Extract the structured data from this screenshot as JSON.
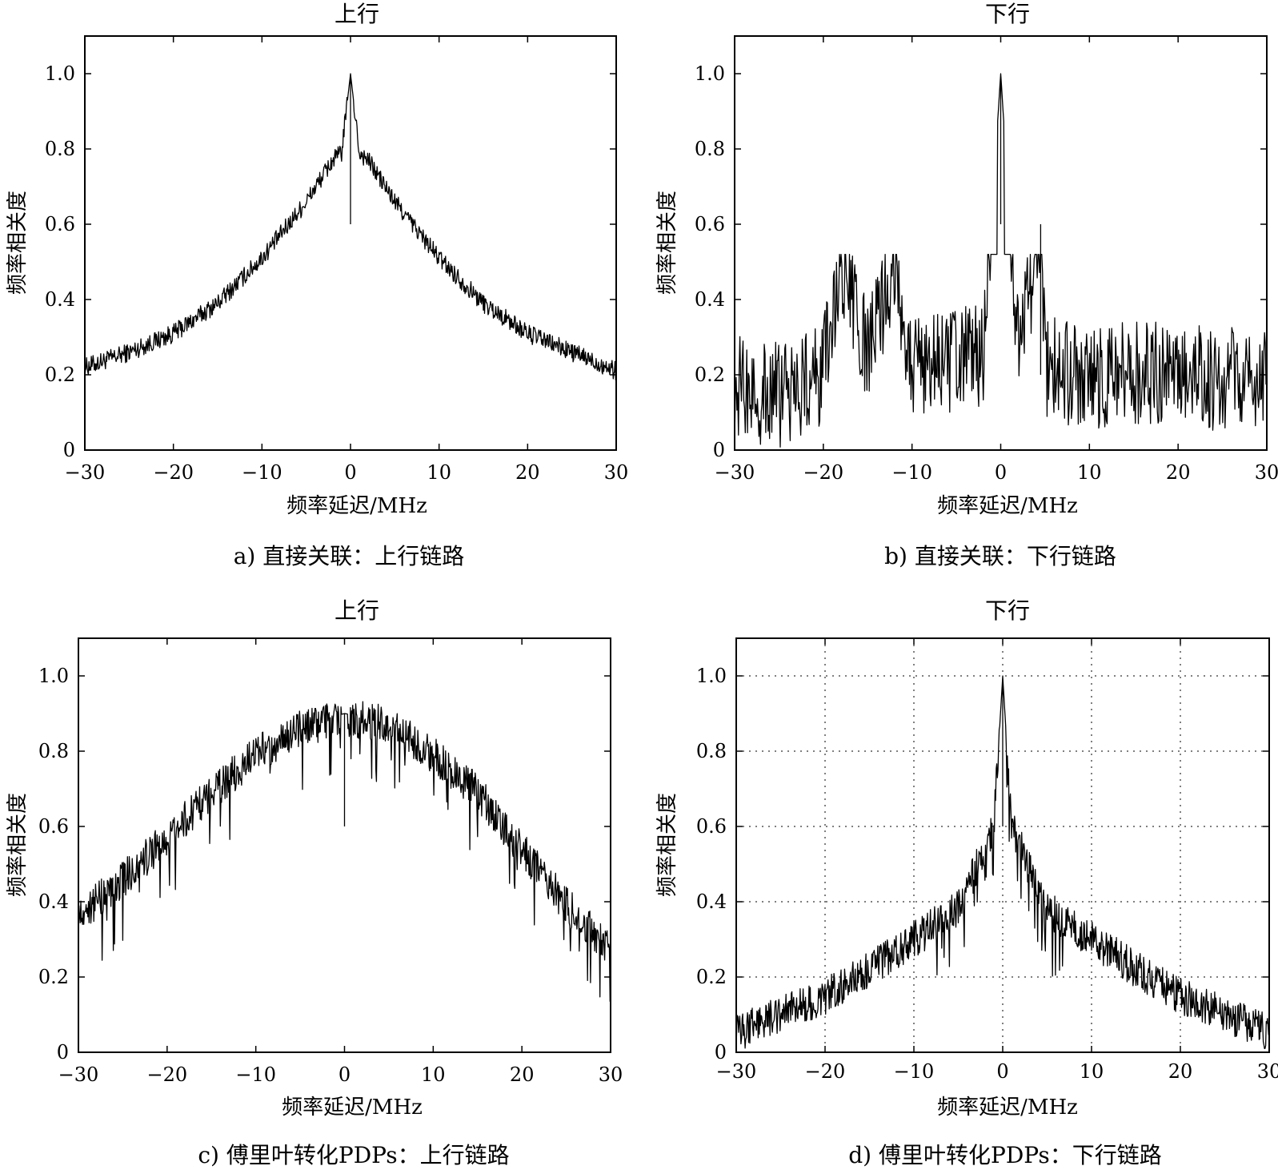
{
  "chart_data": [
    {
      "type": "line",
      "title": "上行",
      "xlabel": "频率延迟/MHz",
      "ylabel": "频率相关度",
      "caption": "a) 直接关联：上行链路",
      "xlim": [
        -30,
        30
      ],
      "ylim": [
        0,
        1.1
      ],
      "xticks": [
        "−30",
        "−20",
        "−10",
        "0",
        "10",
        "20",
        "30"
      ],
      "yticks": [
        "0",
        "0.2",
        "0.4",
        "0.6",
        "0.8",
        "1.0"
      ],
      "grid": false,
      "series": [
        {
          "x": [
            -30,
            -25,
            -20,
            -15,
            -10,
            -5,
            -2,
            -1,
            0,
            1,
            2,
            5,
            10,
            15,
            20,
            25,
            30
          ],
          "y": [
            0.22,
            0.26,
            0.31,
            0.39,
            0.51,
            0.66,
            0.77,
            0.79,
            1.0,
            0.79,
            0.77,
            0.66,
            0.51,
            0.39,
            0.31,
            0.26,
            0.21
          ]
        }
      ]
    },
    {
      "type": "line",
      "title": "下行",
      "xlabel": "频率延迟/MHz",
      "ylabel": "频率相关度",
      "caption": "b) 直接关联：下行链路",
      "xlim": [
        -30,
        30
      ],
      "ylim": [
        0,
        1.1
      ],
      "xticks": [
        "−30",
        "−20",
        "−10",
        "0",
        "10",
        "20",
        "30"
      ],
      "yticks": [
        "0",
        "0.2",
        "0.4",
        "0.6",
        "0.8",
        "1.0"
      ],
      "grid": false,
      "series": [
        {
          "x": [
            -30,
            -25,
            -20,
            -18,
            -15,
            -12,
            -10,
            -5,
            -2,
            0,
            2,
            4.5,
            5,
            10,
            15,
            20,
            25,
            30
          ],
          "y": [
            0.18,
            0.16,
            0.22,
            0.5,
            0.26,
            0.52,
            0.24,
            0.25,
            0.27,
            1.0,
            0.26,
            0.6,
            0.24,
            0.2,
            0.22,
            0.21,
            0.2,
            0.2
          ]
        }
      ]
    },
    {
      "type": "line",
      "title": "上行",
      "xlabel": "频率延迟/MHz",
      "ylabel": "频率相关度",
      "caption": "c) 傅里叶转化PDPs：上行链路",
      "xlim": [
        -30,
        30
      ],
      "ylim": [
        0,
        1.1
      ],
      "xticks": [
        "−30",
        "−20",
        "−10",
        "0",
        "10",
        "20",
        "30"
      ],
      "yticks": [
        "0",
        "0.2",
        "0.4",
        "0.6",
        "0.8",
        "1.0"
      ],
      "grid": false,
      "series": [
        {
          "x": [
            -30,
            -25,
            -20,
            -15,
            -10,
            -5,
            0,
            5,
            10,
            15,
            20,
            25,
            30
          ],
          "y": [
            0.37,
            0.47,
            0.58,
            0.7,
            0.8,
            0.87,
            0.9,
            0.88,
            0.8,
            0.7,
            0.55,
            0.4,
            0.28
          ]
        }
      ]
    },
    {
      "type": "line",
      "title": "下行",
      "xlabel": "频率延迟/MHz",
      "ylabel": "频率相关度",
      "caption": "d) 傅里叶转化PDPs：下行链路",
      "xlim": [
        -30,
        30
      ],
      "ylim": [
        0,
        1.1
      ],
      "xticks": [
        "−30",
        "−20",
        "−10",
        "0",
        "10",
        "20",
        "30"
      ],
      "yticks": [
        "0",
        "0.2",
        "0.4",
        "0.6",
        "0.8",
        "1.0"
      ],
      "grid": true,
      "series": [
        {
          "x": [
            -30,
            -25,
            -20,
            -15,
            -10,
            -5,
            -1,
            0,
            1,
            5,
            10,
            15,
            20,
            25,
            30
          ],
          "y": [
            0.05,
            0.1,
            0.15,
            0.22,
            0.3,
            0.38,
            0.6,
            1.0,
            0.6,
            0.38,
            0.3,
            0.22,
            0.15,
            0.1,
            0.05
          ]
        }
      ]
    }
  ]
}
